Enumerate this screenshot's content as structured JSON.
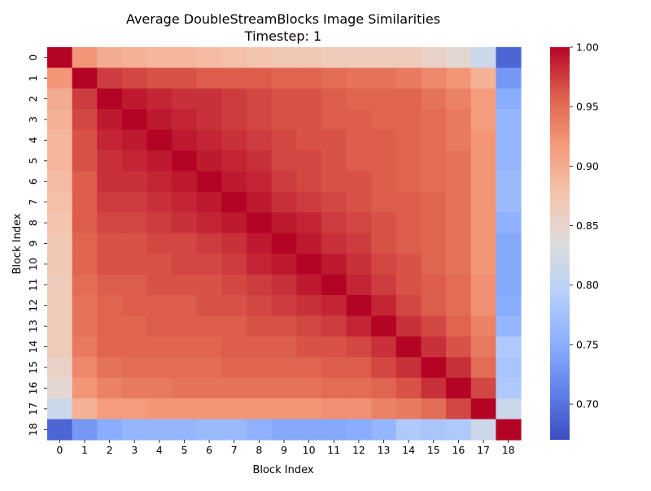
{
  "chart_data": {
    "type": "heatmap",
    "title": "Average DoubleStreamBlocks Image Similarities",
    "subtitle": "Timestep: 1",
    "xlabel": "Block Index",
    "ylabel": "Block Index",
    "x_categories": [
      "0",
      "1",
      "2",
      "3",
      "4",
      "5",
      "6",
      "7",
      "8",
      "9",
      "10",
      "11",
      "12",
      "13",
      "14",
      "15",
      "16",
      "17",
      "18"
    ],
    "y_categories": [
      "0",
      "1",
      "2",
      "3",
      "4",
      "5",
      "6",
      "7",
      "8",
      "9",
      "10",
      "11",
      "12",
      "13",
      "14",
      "15",
      "16",
      "17",
      "18"
    ],
    "colormap": "coolwarm",
    "vmin": 0.67,
    "vmax": 1.0,
    "colorbar_ticks": [
      "0.70",
      "0.75",
      "0.80",
      "0.85",
      "0.90",
      "0.95",
      "1.00"
    ],
    "values": [
      [
        1.0,
        0.92,
        0.9,
        0.895,
        0.89,
        0.89,
        0.885,
        0.88,
        0.875,
        0.87,
        0.87,
        0.865,
        0.865,
        0.865,
        0.865,
        0.855,
        0.845,
        0.815,
        0.69
      ],
      [
        0.92,
        1.0,
        0.975,
        0.97,
        0.965,
        0.965,
        0.96,
        0.96,
        0.96,
        0.955,
        0.955,
        0.95,
        0.945,
        0.945,
        0.94,
        0.93,
        0.92,
        0.895,
        0.73
      ],
      [
        0.9,
        0.975,
        1.0,
        0.99,
        0.985,
        0.98,
        0.98,
        0.975,
        0.97,
        0.965,
        0.965,
        0.96,
        0.955,
        0.955,
        0.955,
        0.945,
        0.935,
        0.915,
        0.75
      ],
      [
        0.895,
        0.97,
        0.99,
        1.0,
        0.99,
        0.985,
        0.98,
        0.975,
        0.97,
        0.965,
        0.965,
        0.96,
        0.96,
        0.955,
        0.955,
        0.95,
        0.94,
        0.915,
        0.76
      ],
      [
        0.89,
        0.965,
        0.985,
        0.99,
        1.0,
        0.99,
        0.985,
        0.98,
        0.975,
        0.97,
        0.965,
        0.965,
        0.96,
        0.96,
        0.955,
        0.95,
        0.94,
        0.92,
        0.76
      ],
      [
        0.89,
        0.965,
        0.98,
        0.985,
        0.99,
        1.0,
        0.99,
        0.985,
        0.98,
        0.97,
        0.97,
        0.965,
        0.96,
        0.96,
        0.955,
        0.95,
        0.945,
        0.92,
        0.76
      ],
      [
        0.885,
        0.96,
        0.98,
        0.98,
        0.985,
        0.99,
        1.0,
        0.99,
        0.985,
        0.975,
        0.97,
        0.965,
        0.965,
        0.96,
        0.955,
        0.95,
        0.945,
        0.92,
        0.765
      ],
      [
        0.88,
        0.96,
        0.975,
        0.975,
        0.98,
        0.985,
        0.99,
        1.0,
        0.99,
        0.98,
        0.975,
        0.97,
        0.965,
        0.96,
        0.96,
        0.955,
        0.945,
        0.92,
        0.765
      ],
      [
        0.875,
        0.96,
        0.97,
        0.97,
        0.975,
        0.98,
        0.985,
        0.99,
        1.0,
        0.99,
        0.985,
        0.975,
        0.97,
        0.965,
        0.96,
        0.955,
        0.945,
        0.92,
        0.755
      ],
      [
        0.87,
        0.955,
        0.965,
        0.965,
        0.97,
        0.97,
        0.975,
        0.98,
        0.99,
        1.0,
        0.99,
        0.98,
        0.975,
        0.965,
        0.96,
        0.955,
        0.945,
        0.92,
        0.745
      ],
      [
        0.87,
        0.955,
        0.965,
        0.965,
        0.965,
        0.97,
        0.97,
        0.975,
        0.985,
        0.99,
        1.0,
        0.99,
        0.98,
        0.97,
        0.965,
        0.955,
        0.945,
        0.92,
        0.745
      ],
      [
        0.865,
        0.95,
        0.96,
        0.96,
        0.965,
        0.965,
        0.965,
        0.97,
        0.975,
        0.98,
        0.99,
        1.0,
        0.985,
        0.975,
        0.965,
        0.96,
        0.95,
        0.925,
        0.745
      ],
      [
        0.865,
        0.945,
        0.955,
        0.96,
        0.96,
        0.96,
        0.965,
        0.965,
        0.97,
        0.975,
        0.98,
        0.985,
        1.0,
        0.985,
        0.97,
        0.96,
        0.95,
        0.925,
        0.75
      ],
      [
        0.865,
        0.945,
        0.955,
        0.955,
        0.96,
        0.96,
        0.96,
        0.96,
        0.965,
        0.965,
        0.97,
        0.975,
        0.985,
        1.0,
        0.98,
        0.97,
        0.955,
        0.935,
        0.76
      ],
      [
        0.865,
        0.94,
        0.955,
        0.955,
        0.955,
        0.955,
        0.955,
        0.96,
        0.96,
        0.96,
        0.965,
        0.965,
        0.97,
        0.98,
        1.0,
        0.98,
        0.965,
        0.94,
        0.785
      ],
      [
        0.855,
        0.93,
        0.945,
        0.95,
        0.95,
        0.95,
        0.95,
        0.955,
        0.955,
        0.955,
        0.955,
        0.96,
        0.96,
        0.97,
        0.98,
        1.0,
        0.98,
        0.95,
        0.78
      ],
      [
        0.845,
        0.92,
        0.935,
        0.94,
        0.94,
        0.945,
        0.945,
        0.945,
        0.945,
        0.945,
        0.945,
        0.95,
        0.95,
        0.955,
        0.965,
        0.98,
        1.0,
        0.97,
        0.785
      ],
      [
        0.815,
        0.895,
        0.915,
        0.915,
        0.92,
        0.92,
        0.92,
        0.92,
        0.92,
        0.92,
        0.92,
        0.925,
        0.925,
        0.935,
        0.94,
        0.95,
        0.97,
        1.0,
        0.815
      ],
      [
        0.69,
        0.73,
        0.75,
        0.76,
        0.76,
        0.76,
        0.765,
        0.765,
        0.755,
        0.745,
        0.745,
        0.745,
        0.75,
        0.76,
        0.785,
        0.78,
        0.785,
        0.815,
        1.0
      ]
    ],
    "grid": false,
    "colorbar": "right"
  }
}
